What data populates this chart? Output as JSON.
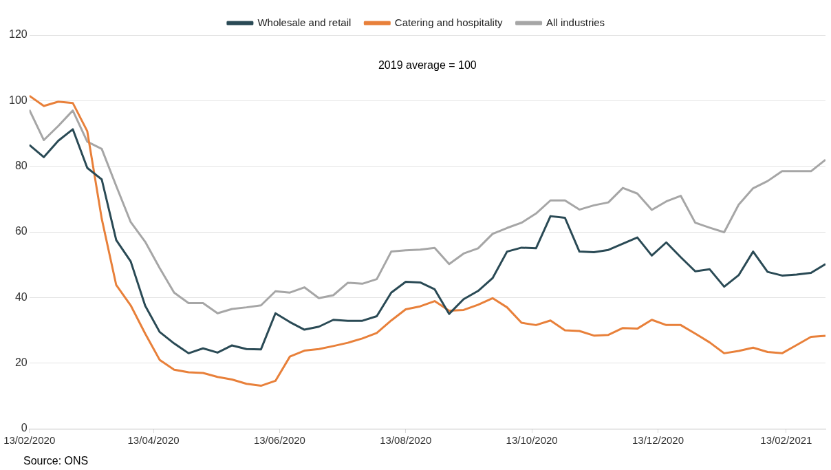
{
  "chart_data": {
    "type": "line",
    "annotations": [
      "2019 average = 100",
      "Source: ONS"
    ],
    "x": [
      "2020-02-13",
      "2020-02-20",
      "2020-02-27",
      "2020-03-05",
      "2020-03-12",
      "2020-03-19",
      "2020-03-26",
      "2020-04-02",
      "2020-04-09",
      "2020-04-16",
      "2020-04-23",
      "2020-04-30",
      "2020-05-07",
      "2020-05-14",
      "2020-05-21",
      "2020-05-28",
      "2020-06-04",
      "2020-06-11",
      "2020-06-18",
      "2020-06-25",
      "2020-07-02",
      "2020-07-09",
      "2020-07-16",
      "2020-07-23",
      "2020-07-30",
      "2020-08-06",
      "2020-08-13",
      "2020-08-20",
      "2020-08-27",
      "2020-09-03",
      "2020-09-10",
      "2020-09-17",
      "2020-09-24",
      "2020-10-01",
      "2020-10-08",
      "2020-10-15",
      "2020-10-22",
      "2020-10-29",
      "2020-11-05",
      "2020-11-12",
      "2020-11-19",
      "2020-11-26",
      "2020-12-03",
      "2020-12-10",
      "2020-12-17",
      "2020-12-24",
      "2020-12-31",
      "2021-01-07",
      "2021-01-14",
      "2021-01-21",
      "2021-01-28",
      "2021-02-04",
      "2021-02-11",
      "2021-02-18",
      "2021-02-25",
      "2021-03-04"
    ],
    "series": [
      {
        "name": "Wholesale and retail",
        "color": "#2a4a55",
        "values": [
          86.5,
          82.8,
          87.8,
          91.3,
          79.5,
          76,
          57.5,
          51,
          37.5,
          29.5,
          26,
          23,
          24.5,
          23.2,
          25.4,
          24.3,
          24.2,
          35.2,
          32.5,
          30.2,
          31.1,
          33.2,
          32.9,
          32.9,
          34.3,
          41.5,
          44.8,
          44.6,
          42.5,
          35,
          39.5,
          42,
          45.9,
          54,
          55.2,
          55,
          64.8,
          64.3,
          54,
          53.8,
          54.5,
          56.4,
          58.3,
          52.8,
          56.8,
          52.3,
          48,
          48.6,
          43.3,
          46.8,
          54,
          47.8,
          46.7,
          47,
          47.5,
          50.2
        ]
      },
      {
        "name": "Catering and hospitality",
        "color": "#e8803a",
        "values": [
          101.5,
          98.4,
          99.7,
          99.3,
          90.7,
          64,
          43.8,
          37.6,
          29,
          21,
          18,
          17.2,
          17,
          15.8,
          15,
          13.7,
          13.1,
          14.6,
          22,
          23.8,
          24.3,
          25.2,
          26.2,
          27.5,
          29.2,
          33,
          36.4,
          37.3,
          38.9,
          36,
          36.2,
          37.8,
          39.8,
          37,
          32.3,
          31.6,
          33,
          30,
          29.8,
          28.4,
          28.6,
          30.7,
          30.5,
          33.2,
          31.6,
          31.6,
          29,
          26.3,
          23,
          23.7,
          24.7,
          23.4,
          23,
          25.5,
          28,
          28.3
        ]
      },
      {
        "name": "All industries",
        "color": "#a6a6a6",
        "values": [
          97.2,
          88,
          92.3,
          97,
          87.5,
          85.3,
          74,
          63,
          57,
          49,
          41.5,
          38.3,
          38.3,
          35.2,
          36.5,
          37,
          37.6,
          41.9,
          41.5,
          43.1,
          39.8,
          40.7,
          44.5,
          44.2,
          45.6,
          54,
          54.4,
          54.6,
          55.1,
          50.2,
          53.4,
          55,
          59.4,
          61.2,
          62.8,
          65.6,
          69.6,
          69.6,
          66.8,
          68.1,
          69,
          73.4,
          71.7,
          66.7,
          69.3,
          71,
          62.8,
          61.3,
          59.9,
          68.3,
          73.3,
          75.5,
          78.5,
          78.5,
          78.5,
          82
        ]
      }
    ],
    "xlim": [
      "2020-02-13",
      "2021-03-04"
    ],
    "xticks": [
      {
        "value": "2020-02-13",
        "label": "13/02/2020"
      },
      {
        "value": "2020-04-13",
        "label": "13/04/2020"
      },
      {
        "value": "2020-06-13",
        "label": "13/06/2020"
      },
      {
        "value": "2020-08-13",
        "label": "13/08/2020"
      },
      {
        "value": "2020-10-13",
        "label": "13/10/2020"
      },
      {
        "value": "2020-12-13",
        "label": "13/12/2020"
      },
      {
        "value": "2021-02-13",
        "label": "13/02/2021"
      }
    ],
    "ylim": [
      0,
      120
    ],
    "yticks": [
      0,
      20,
      40,
      60,
      80,
      100,
      120
    ],
    "grid": "y",
    "legend": "top",
    "marker": "none",
    "line_style": "solid"
  }
}
